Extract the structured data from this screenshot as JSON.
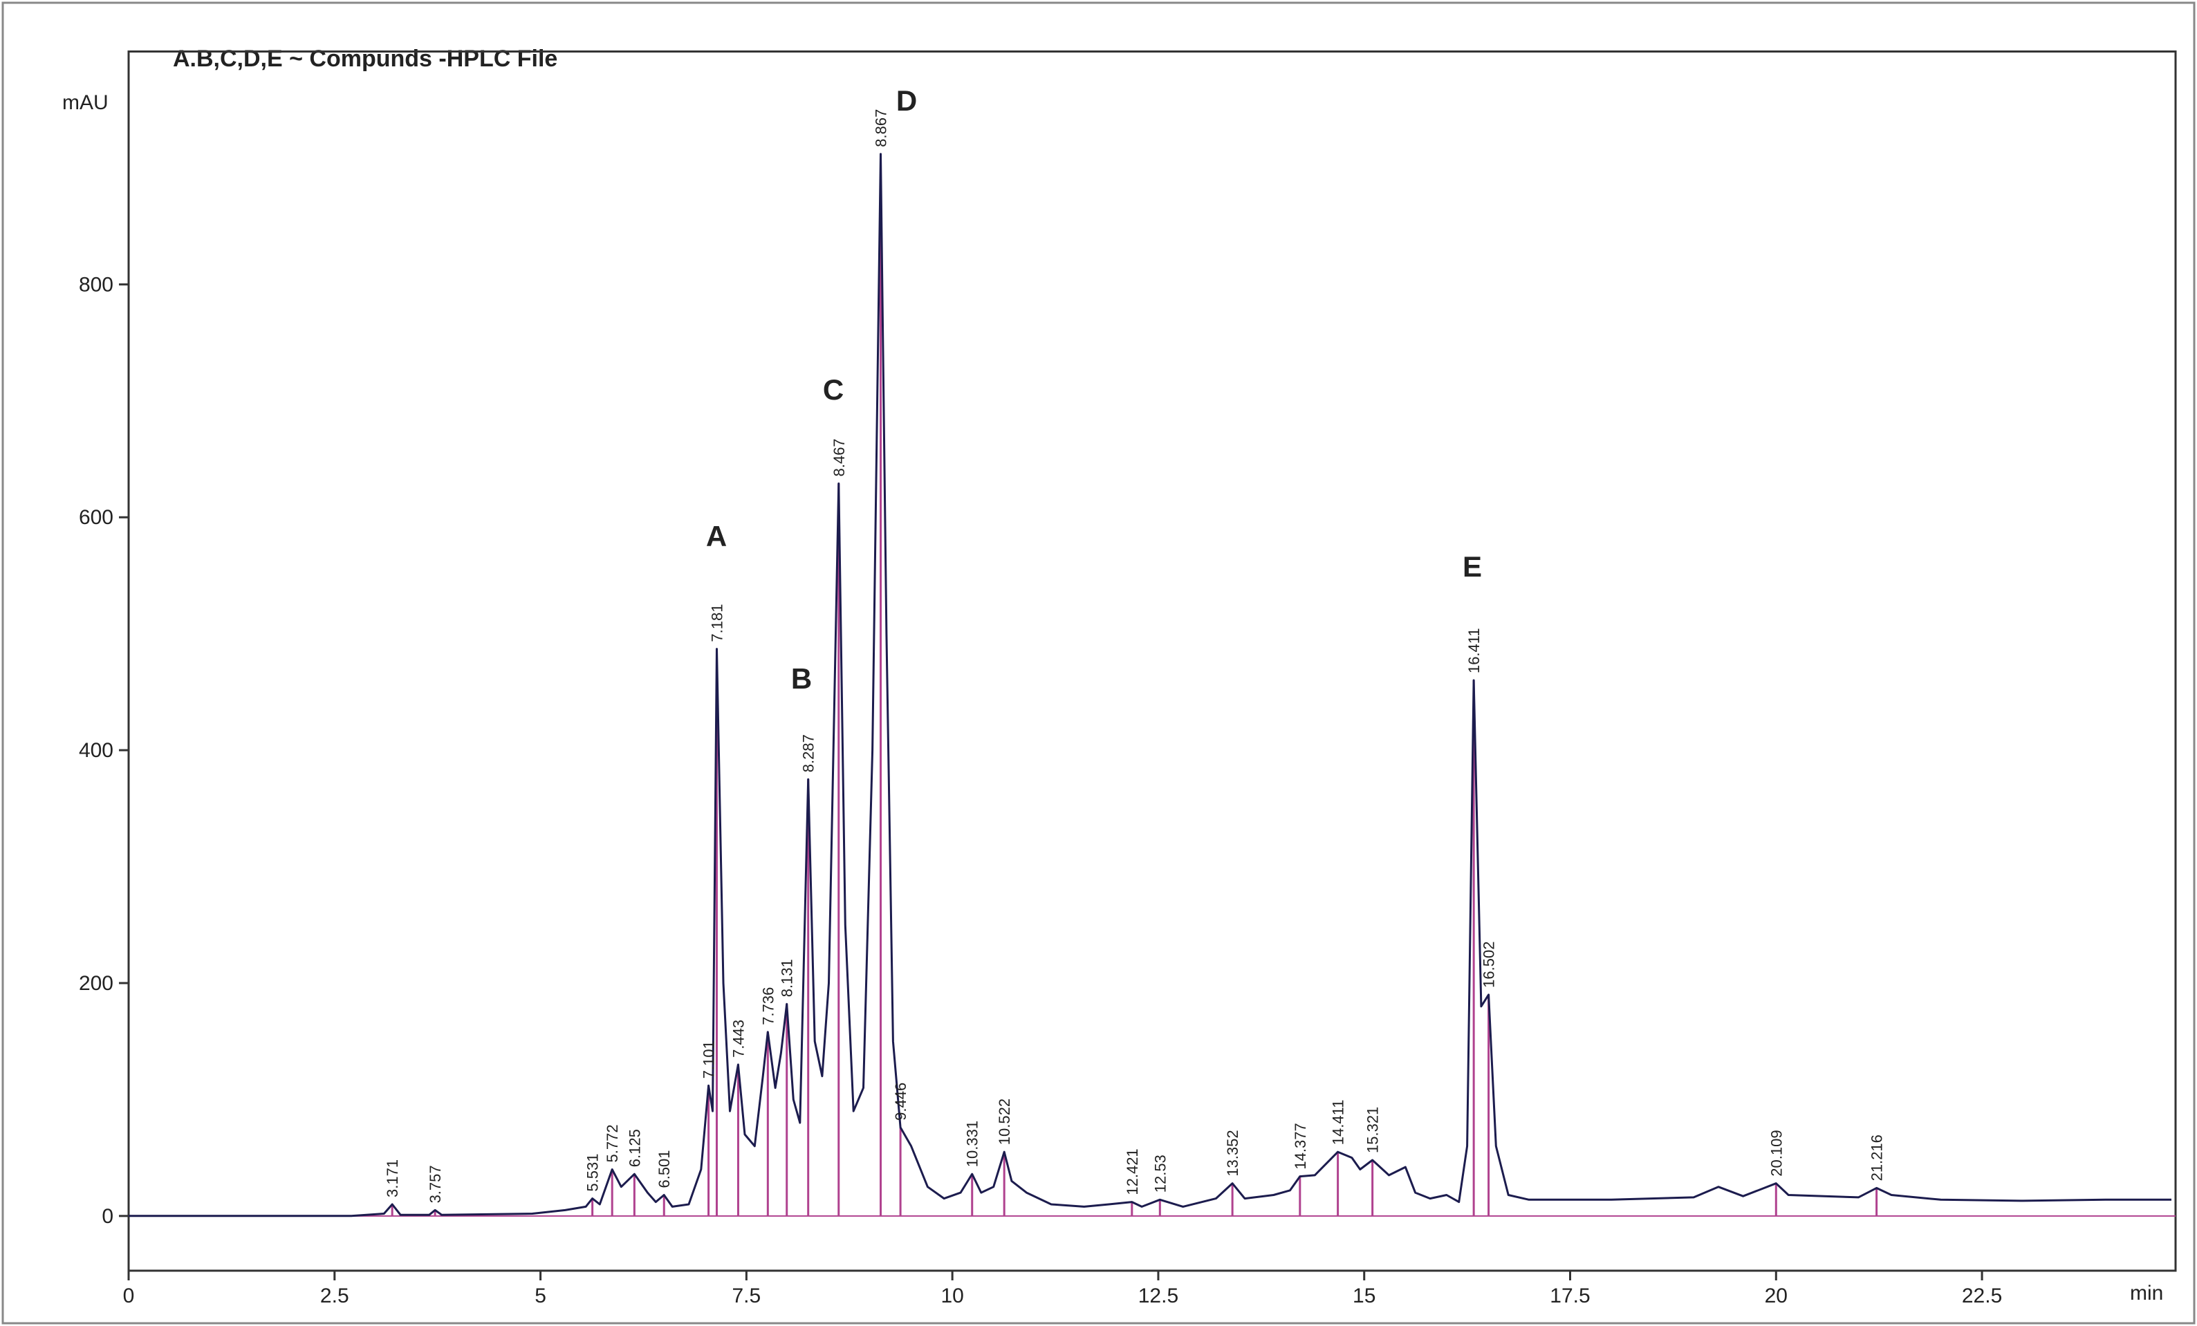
{
  "chart_data": {
    "type": "line",
    "title": "A.B,C,D,E ~ Compunds  -HPLC File",
    "y_label": "mAU",
    "x_label": "min",
    "xlim": [
      0,
      24.85
    ],
    "ylim": [
      -47,
      1000
    ],
    "xticks": [
      0,
      2.5,
      5,
      7.5,
      10,
      12.5,
      15,
      17.5,
      20,
      22.5
    ],
    "yticks": [
      0,
      200,
      400,
      600,
      800
    ],
    "series": [
      {
        "color": "#1c1c4e",
        "x": [
          0,
          2.7,
          3.1,
          3.2,
          3.3,
          3.65,
          3.72,
          3.8,
          4.9,
          5.3,
          5.55,
          5.63,
          5.72,
          5.87,
          5.98,
          6.14,
          6.3,
          6.4,
          6.5,
          6.6,
          6.8,
          6.95,
          7.04,
          7.09,
          7.14,
          7.22,
          7.3,
          7.4,
          7.48,
          7.6,
          7.7,
          7.76,
          7.85,
          7.92,
          7.99,
          8.07,
          8.15,
          8.25,
          8.33,
          8.42,
          8.5,
          8.62,
          8.7,
          8.8,
          8.92,
          9.03,
          9.13,
          9.2,
          9.28,
          9.37,
          9.5,
          9.7,
          9.9,
          10.1,
          10.24,
          10.35,
          10.5,
          10.63,
          10.72,
          10.9,
          11.2,
          11.6,
          11.9,
          12.18,
          12.3,
          12.52,
          12.8,
          13.2,
          13.4,
          13.55,
          13.9,
          14.1,
          14.22,
          14.4,
          14.68,
          14.85,
          14.95,
          15.1,
          15.3,
          15.5,
          15.62,
          15.8,
          16.0,
          16.15,
          16.25,
          16.33,
          16.42,
          16.51,
          16.6,
          16.75,
          17.0,
          18.0,
          19.0,
          19.3,
          19.6,
          20.0,
          20.15,
          21.0,
          21.22,
          21.4,
          22.0,
          23.0,
          24.0,
          24.8
        ],
        "values": [
          0,
          0,
          2,
          10,
          1,
          1,
          5,
          1,
          2,
          5,
          8,
          15,
          10,
          40,
          25,
          36,
          20,
          12,
          18,
          8,
          10,
          40,
          112,
          90,
          487,
          200,
          90,
          130,
          70,
          60,
          120,
          158,
          110,
          140,
          182,
          100,
          80,
          375,
          150,
          120,
          200,
          629,
          250,
          90,
          110,
          400,
          912,
          500,
          150,
          76,
          60,
          25,
          15,
          20,
          36,
          20,
          25,
          55,
          30,
          20,
          10,
          8,
          10,
          12,
          8,
          14,
          8,
          15,
          28,
          15,
          18,
          22,
          34,
          35,
          55,
          50,
          40,
          48,
          35,
          42,
          20,
          15,
          18,
          12,
          60,
          460,
          180,
          190,
          60,
          18,
          14,
          14,
          16,
          25,
          17,
          28,
          18,
          16,
          24,
          18,
          14,
          13,
          14,
          14
        ]
      }
    ],
    "peaks": {
      "color": "#b0428f",
      "labels": [
        3.171,
        3.757,
        5.531,
        5.772,
        6.125,
        6.501,
        7.101,
        7.181,
        7.443,
        7.736,
        8.131,
        8.287,
        8.467,
        8.867,
        9.446,
        10.331,
        10.522,
        12.421,
        12.53,
        13.352,
        14.377,
        14.411,
        15.321,
        16.411,
        16.502,
        20.109,
        21.216
      ],
      "x": [
        3.2,
        3.72,
        5.63,
        5.87,
        6.14,
        6.5,
        7.04,
        7.14,
        7.4,
        7.76,
        7.99,
        8.25,
        8.62,
        9.13,
        9.37,
        10.24,
        10.63,
        12.18,
        12.52,
        13.4,
        14.22,
        14.68,
        15.1,
        16.33,
        16.51,
        20.0,
        21.22
      ],
      "heights": [
        10,
        5,
        15,
        40,
        36,
        18,
        112,
        487,
        130,
        158,
        182,
        375,
        629,
        912,
        76,
        36,
        55,
        12,
        14,
        28,
        34,
        55,
        48,
        460,
        190,
        28,
        24
      ]
    },
    "annotations": [
      "A",
      "B",
      "C",
      "D",
      "E"
    ]
  }
}
